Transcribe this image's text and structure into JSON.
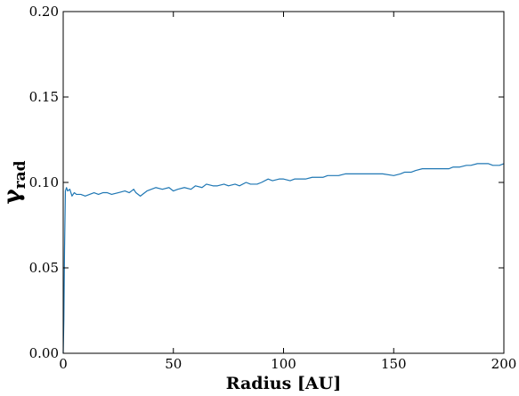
{
  "chart_data": {
    "type": "line",
    "title": "",
    "xlabel": "Radius [AU]",
    "ylabel_main": "γ",
    "ylabel_sub": "rad",
    "xlim": [
      0,
      200
    ],
    "ylim": [
      0.0,
      0.2
    ],
    "x_ticks": [
      0,
      50,
      100,
      150,
      200
    ],
    "x_tick_labels": [
      "0",
      "50",
      "100",
      "150",
      "200"
    ],
    "y_ticks": [
      0.0,
      0.05,
      0.1,
      0.15,
      0.2
    ],
    "y_tick_labels": [
      "0.00",
      "0.05",
      "0.10",
      "0.15",
      "0.20"
    ],
    "grid": false,
    "line_color": "#1f77b4",
    "series": [
      {
        "x": [
          0.0,
          0.3,
          0.6,
          1.0,
          1.5,
          2.0,
          3.0,
          4.0,
          5.0,
          6.0,
          8.0,
          10.0,
          12.0,
          14.0,
          16.0,
          18.0,
          20.0,
          22.0,
          25.0,
          28.0,
          30.0,
          32.0,
          33.0,
          35.0,
          38.0,
          40.0,
          42.0,
          45.0,
          48.0,
          50.0,
          52.0,
          55.0,
          58.0,
          60.0,
          63.0,
          65.0,
          68.0,
          70.0,
          73.0,
          75.0,
          78.0,
          80.0,
          83.0,
          85.0,
          88.0,
          90.0,
          93.0,
          95.0,
          98.0,
          100.0,
          103.0,
          105.0,
          108.0,
          110.0,
          113.0,
          115.0,
          118.0,
          120.0,
          123.0,
          125.0,
          128.0,
          130.0,
          135.0,
          140.0,
          145.0,
          150.0,
          153.0,
          155.0,
          158.0,
          160.0,
          163.0,
          165.0,
          170.0,
          175.0,
          177.0,
          180.0,
          183.0,
          185.0,
          188.0,
          190.0,
          193.0,
          195.0,
          198.0,
          200.0
        ],
        "y": [
          0.0,
          0.02,
          0.06,
          0.095,
          0.097,
          0.095,
          0.096,
          0.092,
          0.094,
          0.093,
          0.093,
          0.092,
          0.093,
          0.094,
          0.093,
          0.094,
          0.094,
          0.093,
          0.094,
          0.095,
          0.094,
          0.096,
          0.094,
          0.092,
          0.095,
          0.096,
          0.097,
          0.096,
          0.097,
          0.095,
          0.096,
          0.097,
          0.096,
          0.098,
          0.097,
          0.099,
          0.098,
          0.098,
          0.099,
          0.098,
          0.099,
          0.098,
          0.1,
          0.099,
          0.099,
          0.1,
          0.102,
          0.101,
          0.102,
          0.102,
          0.101,
          0.102,
          0.102,
          0.102,
          0.103,
          0.103,
          0.103,
          0.104,
          0.104,
          0.104,
          0.105,
          0.105,
          0.105,
          0.105,
          0.105,
          0.104,
          0.105,
          0.106,
          0.106,
          0.107,
          0.108,
          0.108,
          0.108,
          0.108,
          0.109,
          0.109,
          0.11,
          0.11,
          0.111,
          0.111,
          0.111,
          0.11,
          0.11,
          0.111
        ]
      }
    ]
  }
}
